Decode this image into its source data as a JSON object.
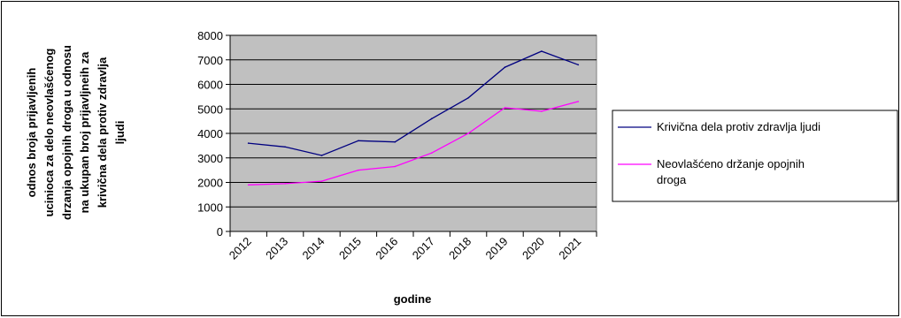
{
  "chart_data": {
    "type": "line",
    "title": "",
    "xlabel": "godine",
    "ylabel_lines": [
      "odnos broja prijavljenih",
      "ucinioca za delo neovlašćenog",
      "drzanja opojnih droga u odnosu",
      "na ukupan broj prijavljneih za",
      "krivična dela protiv zdravlja",
      "ljudi"
    ],
    "categories": [
      "2012",
      "2013",
      "2014",
      "2015",
      "2016",
      "2017",
      "2018",
      "2019",
      "2020",
      "2021"
    ],
    "ylim": [
      0,
      8000
    ],
    "yticks": [
      "0",
      "1000",
      "2000",
      "3000",
      "4000",
      "5000",
      "6000",
      "7000",
      "8000"
    ],
    "grid": true,
    "legend_position": "right",
    "series": [
      {
        "name": "Krivična dela protiv zdravlja ljudi",
        "legend_lines": [
          "Krivična dela protiv zdravlja ljudi"
        ],
        "color": "#000080",
        "values": [
          3600,
          3450,
          3100,
          3700,
          3650,
          4600,
          5450,
          6700,
          7350,
          6800
        ]
      },
      {
        "name": "Neovlašćeno držanje opojnih droga",
        "legend_lines": [
          "Neovlašćeno držanje opojnih",
          "droga"
        ],
        "color": "#ff00ff",
        "values": [
          1900,
          1950,
          2050,
          2500,
          2650,
          3200,
          4000,
          5050,
          4900,
          5300
        ]
      }
    ],
    "plot_background": "#c0c0c0"
  }
}
